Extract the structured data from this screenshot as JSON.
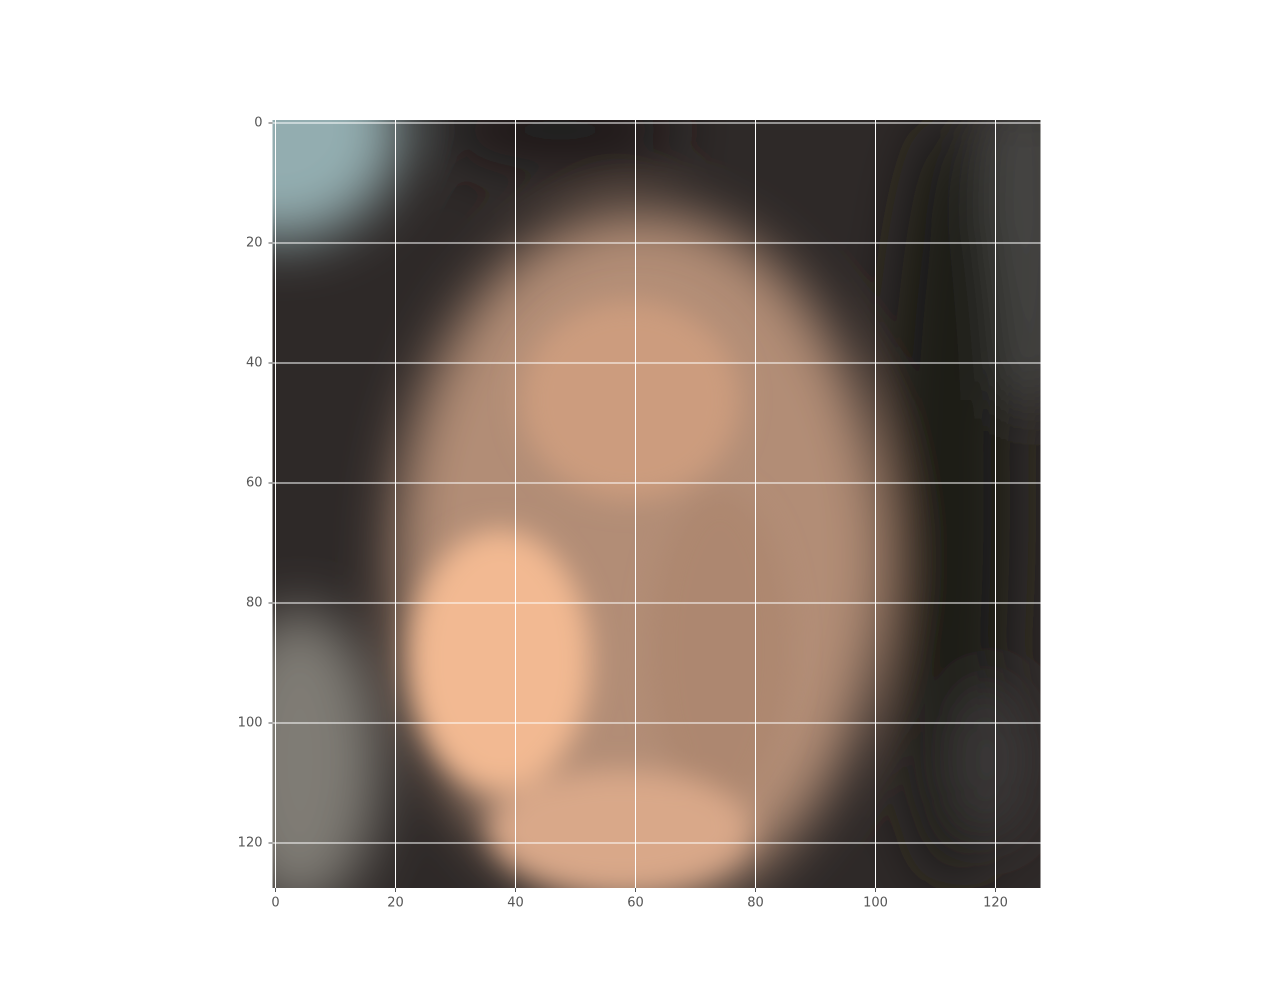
{
  "chart_data": {
    "type": "image",
    "xlim": [
      -0.5,
      127.5
    ],
    "ylim": [
      127.5,
      -0.5
    ],
    "xticks": [
      0,
      20,
      40,
      60,
      80,
      100,
      120
    ],
    "yticks": [
      0,
      20,
      40,
      60,
      80,
      100,
      120
    ],
    "grid": true,
    "grid_color": "#ffffff"
  }
}
